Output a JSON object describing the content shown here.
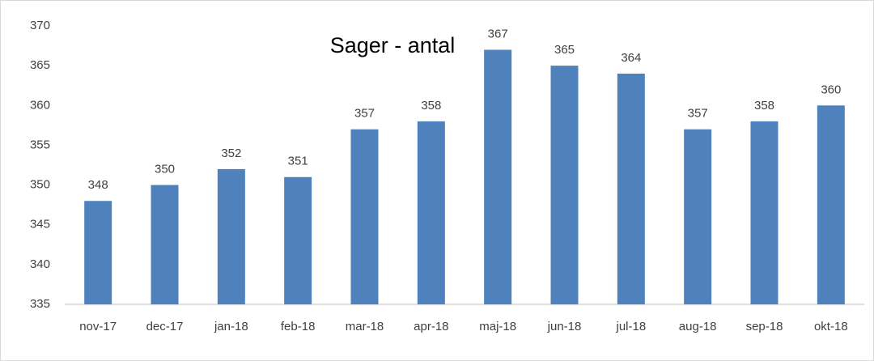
{
  "chart_data": {
    "type": "bar",
    "title": "Sager - antal",
    "categories": [
      "nov-17",
      "dec-17",
      "jan-18",
      "feb-18",
      "mar-18",
      "apr-18",
      "maj-18",
      "jun-18",
      "jul-18",
      "aug-18",
      "sep-18",
      "okt-18"
    ],
    "values": [
      348,
      350,
      352,
      351,
      357,
      358,
      367,
      365,
      364,
      357,
      358,
      360
    ],
    "color": "#4f81bd",
    "ylim": [
      335,
      370
    ],
    "yticks": [
      335,
      340,
      345,
      350,
      355,
      360,
      365,
      370
    ],
    "grid": false
  }
}
